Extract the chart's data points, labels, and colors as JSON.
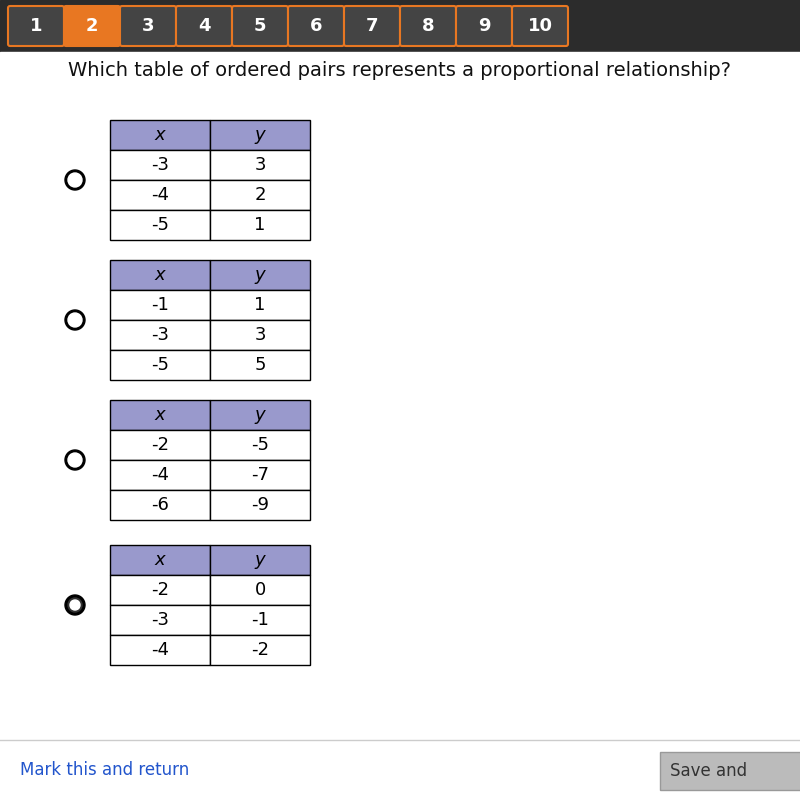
{
  "title": "Which table of ordered pairs represents a proportional relationship?",
  "background_color": "#f0f0f0",
  "nav_buttons": [
    "1",
    "2",
    "3",
    "4",
    "5",
    "6",
    "7",
    "8",
    "9",
    "10"
  ],
  "nav_active": 1,
  "nav_bg": "#2c2c2c",
  "nav_active_color": "#e87722",
  "nav_inactive_color": "#444444",
  "tables": [
    {
      "headers": [
        "x",
        "y"
      ],
      "rows": [
        [
          "-3",
          "3"
        ],
        [
          "-4",
          "2"
        ],
        [
          "-5",
          "1"
        ]
      ],
      "selected": false
    },
    {
      "headers": [
        "x",
        "y"
      ],
      "rows": [
        [
          "-1",
          "1"
        ],
        [
          "-3",
          "3"
        ],
        [
          "-5",
          "5"
        ]
      ],
      "selected": false
    },
    {
      "headers": [
        "x",
        "y"
      ],
      "rows": [
        [
          "-2",
          "-5"
        ],
        [
          "-4",
          "-7"
        ],
        [
          "-6",
          "-9"
        ]
      ],
      "selected": false
    },
    {
      "headers": [
        "x",
        "y"
      ],
      "rows": [
        [
          "-2",
          "0"
        ],
        [
          "-3",
          "-1"
        ],
        [
          "-4",
          "-2"
        ]
      ],
      "selected": true
    }
  ],
  "header_color": "#9999cc",
  "header_text_color": "#000000",
  "row_color": "#ffffff",
  "row_text_color": "#000000",
  "table_border_color": "#000000",
  "radio_unselected": "#ffffff",
  "radio_selected": "#222222",
  "mark_return_color": "#2255cc",
  "mark_return_text": "Mark this and return",
  "save_text": "Save and"
}
